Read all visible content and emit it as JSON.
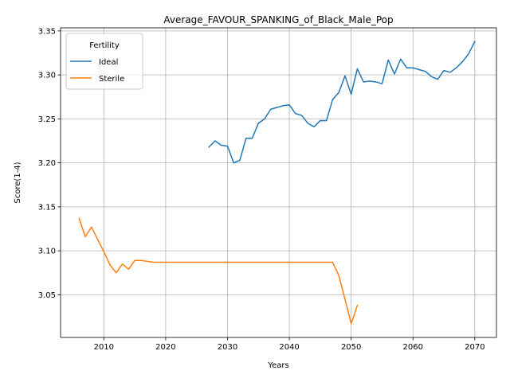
{
  "chart_data": {
    "type": "line",
    "title": "Average_FAVOUR_SPANKING_of_Black_Male_Pop",
    "xlabel": "Years",
    "ylabel": "Score(1-4)",
    "xlim": [
      2003,
      2073.5
    ],
    "ylim": [
      3.0015,
      3.3535
    ],
    "xticks": [
      2010,
      2020,
      2030,
      2040,
      2050,
      2060,
      2070
    ],
    "yticks": [
      3.05,
      3.1,
      3.15,
      3.2,
      3.25,
      3.3,
      3.35
    ],
    "ytick_labels": [
      "3.05",
      "3.10",
      "3.15",
      "3.20",
      "3.25",
      "3.30",
      "3.35"
    ],
    "grid": true,
    "legend": {
      "title": "Fertility",
      "position": "top-left"
    },
    "series": [
      {
        "name": "Ideal",
        "color": "#1f77b4",
        "x": [
          2027,
          2028,
          2029,
          2030,
          2031,
          2032,
          2033,
          2034,
          2035,
          2036,
          2037,
          2038,
          2039,
          2040,
          2041,
          2042,
          2043,
          2044,
          2045,
          2046,
          2047,
          2048,
          2049,
          2050,
          2051,
          2052,
          2053,
          2054,
          2055,
          2056,
          2057,
          2058,
          2059,
          2060,
          2061,
          2062,
          2063,
          2064,
          2065,
          2066,
          2067,
          2068,
          2069,
          2070
        ],
        "values": [
          3.218,
          3.225,
          3.22,
          3.219,
          3.2,
          3.203,
          3.228,
          3.228,
          3.245,
          3.25,
          3.261,
          3.263,
          3.265,
          3.266,
          3.256,
          3.254,
          3.245,
          3.241,
          3.248,
          3.248,
          3.272,
          3.28,
          3.299,
          3.278,
          3.307,
          3.292,
          3.293,
          3.292,
          3.29,
          3.317,
          3.301,
          3.318,
          3.308,
          3.308,
          3.306,
          3.304,
          3.298,
          3.295,
          3.305,
          3.303,
          3.308,
          3.315,
          3.324,
          3.338
        ]
      },
      {
        "name": "Sterile",
        "color": "#ff7f0e",
        "x": [
          2006,
          2007,
          2008,
          2009,
          2010,
          2011,
          2012,
          2013,
          2014,
          2015,
          2016,
          2017,
          2018,
          2019,
          2020,
          2021,
          2022,
          2023,
          2024,
          2025,
          2026,
          2027,
          2028,
          2029,
          2030,
          2031,
          2032,
          2033,
          2034,
          2035,
          2036,
          2037,
          2038,
          2039,
          2040,
          2041,
          2042,
          2043,
          2044,
          2045,
          2046,
          2047,
          2048,
          2049,
          2050,
          2051
        ],
        "values": [
          3.137,
          3.116,
          3.127,
          3.113,
          3.099,
          3.084,
          3.075,
          3.085,
          3.079,
          3.089,
          3.089,
          3.088,
          3.087,
          3.087,
          3.087,
          3.087,
          3.087,
          3.087,
          3.087,
          3.087,
          3.087,
          3.087,
          3.087,
          3.087,
          3.087,
          3.087,
          3.087,
          3.087,
          3.087,
          3.087,
          3.087,
          3.087,
          3.087,
          3.087,
          3.087,
          3.087,
          3.087,
          3.087,
          3.087,
          3.087,
          3.087,
          3.087,
          3.072,
          3.045,
          3.017,
          3.038
        ]
      }
    ]
  }
}
